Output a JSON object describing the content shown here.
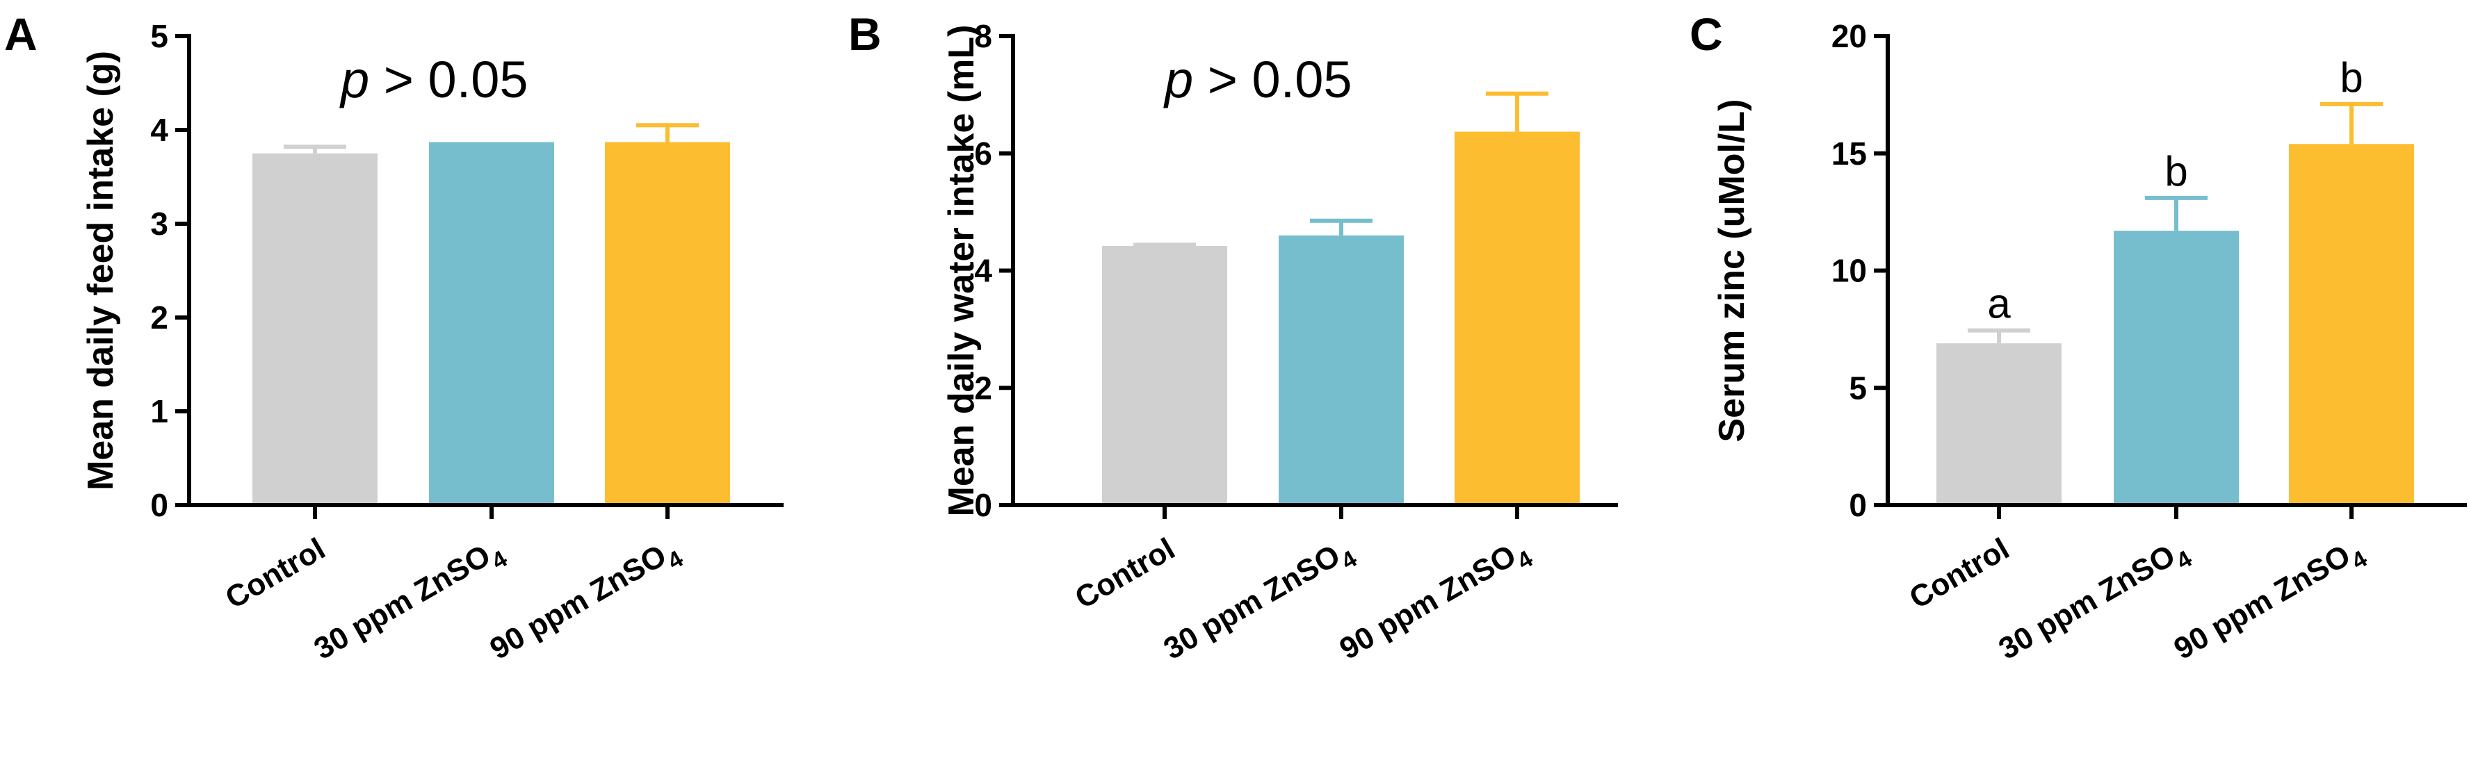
{
  "colors": {
    "Control": "#d0d0d0",
    "30 ppm ZnSO4": "#76bece",
    "90 ppm ZnSO4": "#fcbd31",
    "axis": "#000000"
  },
  "chart_data": [
    {
      "panel": "A",
      "type": "bar",
      "categories": [
        {
          "base": "Control",
          "sub": ""
        },
        {
          "base": "30 ppm ZnSO",
          "sub": "4"
        },
        {
          "base": "90 ppm ZnSO",
          "sub": "4"
        }
      ],
      "values": [
        3.75,
        3.87,
        3.87
      ],
      "errors": [
        0.07,
        0.0,
        0.18
      ],
      "ylabel": "Mean daily feed intake (g)",
      "ylim": [
        0,
        5
      ],
      "yticks": [
        "0",
        "1",
        "2",
        "3",
        "4",
        "5"
      ],
      "annotation": {
        "italic": "p",
        "rest": " > 0.05"
      },
      "sig_letters": []
    },
    {
      "panel": "B",
      "type": "bar",
      "categories": [
        {
          "base": "Control",
          "sub": ""
        },
        {
          "base": "30 ppm ZnSO",
          "sub": "4"
        },
        {
          "base": "90 ppm ZnSO",
          "sub": "4"
        }
      ],
      "values": [
        4.42,
        4.6,
        6.37
      ],
      "errors": [
        0.02,
        0.25,
        0.65
      ],
      "ylabel": "Mean daily water intake (mL)",
      "ylim": [
        0,
        8
      ],
      "yticks": [
        "0",
        "2",
        "4",
        "6",
        "8"
      ],
      "annotation": {
        "italic": "p",
        "rest": " > 0.05"
      },
      "sig_letters": []
    },
    {
      "panel": "C",
      "type": "bar",
      "categories": [
        {
          "base": "Control",
          "sub": ""
        },
        {
          "base": "30 ppm ZnSO",
          "sub": "4"
        },
        {
          "base": "90 ppm ZnSO",
          "sub": "4"
        }
      ],
      "values": [
        6.9,
        11.7,
        15.4
      ],
      "errors": [
        0.55,
        1.4,
        1.7
      ],
      "ylabel": "Serum zinc (uMol/L)",
      "ylim": [
        0,
        20
      ],
      "yticks": [
        "0",
        "5",
        "10",
        "15",
        "20"
      ],
      "annotation": null,
      "sig_letters": [
        "a",
        "b",
        "b"
      ]
    }
  ]
}
